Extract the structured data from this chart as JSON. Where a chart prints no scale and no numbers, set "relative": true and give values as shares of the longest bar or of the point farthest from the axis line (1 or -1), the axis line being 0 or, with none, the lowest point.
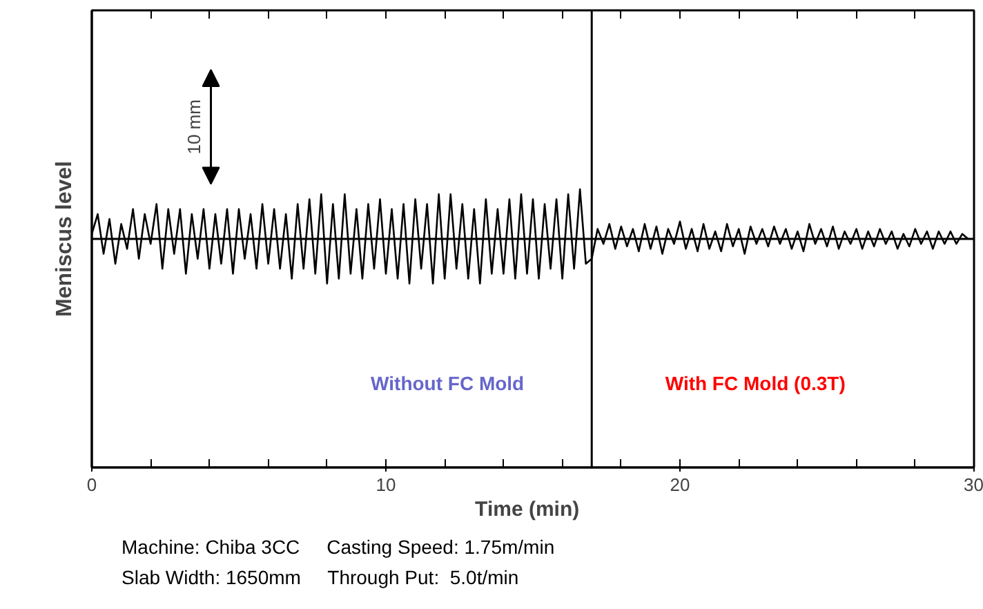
{
  "chart_data": {
    "type": "line",
    "relative": true,
    "xlabel": "Time   (min)",
    "ylabel": "Meniscus level",
    "x": [
      0,
      0.2,
      0.4,
      0.6,
      0.8,
      1,
      1.2,
      1.4,
      1.6,
      1.8,
      2,
      2.2,
      2.4,
      2.6,
      2.8,
      3,
      3.2,
      3.4,
      3.6,
      3.8,
      4,
      4.2,
      4.4,
      4.6,
      4.8,
      5,
      5.2,
      5.4,
      5.6,
      5.8,
      6,
      6.2,
      6.4,
      6.6,
      6.8,
      7,
      7.2,
      7.4,
      7.6,
      7.8,
      8,
      8.2,
      8.4,
      8.6,
      8.8,
      9,
      9.2,
      9.4,
      9.6,
      9.8,
      10,
      10.2,
      10.4,
      10.6,
      10.8,
      11,
      11.2,
      11.4,
      11.6,
      11.8,
      12,
      12.2,
      12.4,
      12.6,
      12.8,
      13,
      13.2,
      13.4,
      13.6,
      13.8,
      14,
      14.2,
      14.4,
      14.6,
      14.8,
      15,
      15.2,
      15.4,
      15.6,
      15.8,
      16,
      16.2,
      16.4,
      16.6,
      16.8,
      17,
      17.2,
      17.4,
      17.6,
      17.8,
      18,
      18.2,
      18.4,
      18.6,
      18.8,
      19,
      19.2,
      19.4,
      19.6,
      19.8,
      20,
      20.2,
      20.4,
      20.6,
      20.8,
      21,
      21.2,
      21.4,
      21.6,
      21.8,
      22,
      22.2,
      22.4,
      22.6,
      22.8,
      23,
      23.2,
      23.4,
      23.6,
      23.8,
      24,
      24.2,
      24.4,
      24.6,
      24.8,
      25,
      25.2,
      25.4,
      25.6,
      25.8,
      26,
      26.2,
      26.4,
      26.6,
      26.8,
      27,
      27.2,
      27.4,
      27.6,
      27.8,
      28,
      28.2,
      28.4,
      28.6,
      28.8,
      29,
      29.2,
      29.4,
      29.6,
      29.8
    ],
    "series": [
      {
        "color": "#000000",
        "values": [
          0.1,
          0.5,
          -0.3,
          0.4,
          -0.5,
          0.3,
          -0.2,
          0.6,
          -0.4,
          0.5,
          -0.1,
          0.7,
          -0.6,
          0.6,
          -0.3,
          0.6,
          -0.7,
          0.5,
          -0.4,
          0.6,
          -0.6,
          0.5,
          -0.5,
          0.6,
          -0.7,
          0.6,
          -0.4,
          0.5,
          -0.6,
          0.7,
          -0.5,
          0.6,
          -0.6,
          0.5,
          -0.8,
          0.7,
          -0.6,
          0.8,
          -0.7,
          0.9,
          -0.9,
          0.7,
          -0.8,
          0.9,
          -0.7,
          0.6,
          -0.8,
          0.7,
          -0.6,
          0.8,
          -0.7,
          0.6,
          -0.8,
          0.7,
          -0.9,
          0.8,
          -0.6,
          0.7,
          -0.9,
          0.9,
          -0.8,
          0.9,
          -0.6,
          0.7,
          -0.8,
          0.6,
          -0.9,
          0.8,
          -0.7,
          0.6,
          -0.7,
          0.8,
          -0.8,
          0.9,
          -0.7,
          0.8,
          -0.8,
          0.7,
          -0.6,
          0.8,
          -0.8,
          0.9,
          -0.6,
          1.0,
          -0.5,
          -0.4,
          0.2,
          -0.1,
          0.3,
          -0.2,
          0.25,
          -0.15,
          0.2,
          -0.25,
          0.3,
          -0.2,
          0.25,
          -0.3,
          0.2,
          -0.1,
          0.35,
          -0.2,
          0.2,
          -0.25,
          0.3,
          -0.2,
          0.15,
          -0.25,
          0.3,
          -0.15,
          0.2,
          -0.3,
          0.25,
          -0.1,
          0.2,
          -0.15,
          0.25,
          -0.1,
          0.2,
          -0.2,
          0.15,
          -0.25,
          0.3,
          -0.1,
          0.2,
          -0.15,
          0.25,
          -0.2,
          0.15,
          -0.1,
          0.2,
          -0.2,
          0.15,
          -0.15,
          0.2,
          -0.1,
          0.15,
          -0.2,
          0.1,
          -0.15,
          0.2,
          -0.1,
          0.15,
          -0.2,
          0.15,
          -0.1,
          0.15,
          -0.1,
          0.1,
          0.0
        ]
      }
    ],
    "xlim": [
      0,
      30
    ],
    "xticks": [
      0,
      10,
      20,
      30
    ],
    "ref_lines": [
      {
        "axis": "y",
        "value": 0,
        "label": null,
        "color": "#000000"
      },
      {
        "axis": "x",
        "value": 17,
        "label": null,
        "color": "#000000"
      }
    ],
    "annotations": [
      "10 mm",
      "Without FC Mold",
      "With FC Mold (0.3T)",
      "Machine: Chiba 3CC     Casting Speed: 1.75m/min",
      "Slab Width: 1650mm     Through Put:  5.0t/min"
    ],
    "grid": false,
    "marker": "none",
    "line_style": "solid"
  }
}
